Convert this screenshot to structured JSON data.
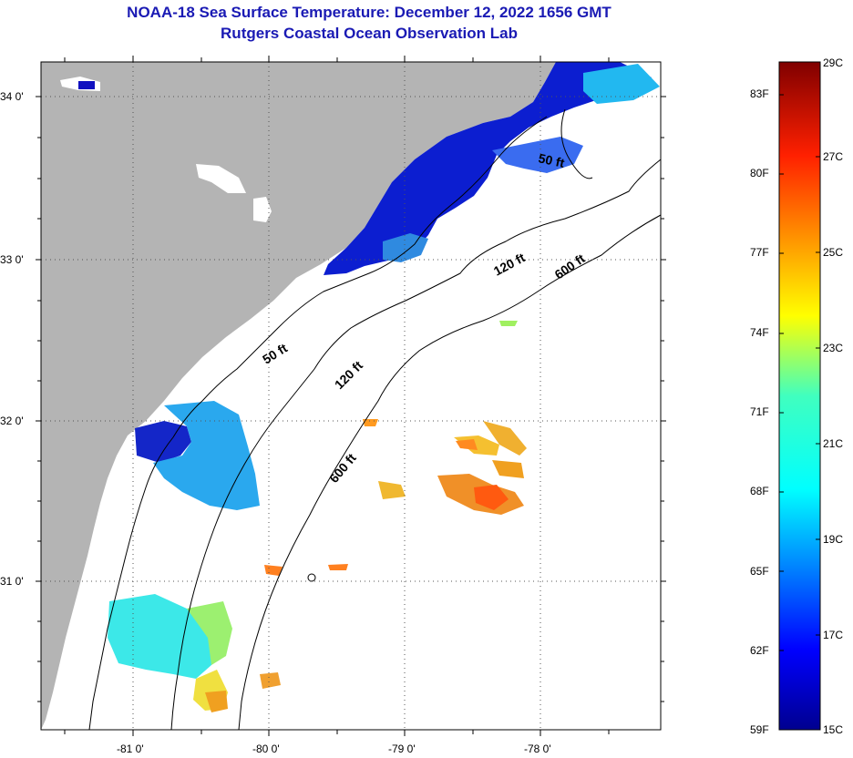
{
  "title": {
    "line1": "NOAA-18 Sea Surface Temperature:  December 12, 2022 1656 GMT",
    "line2": "Rutgers Coastal Ocean Observation Lab"
  },
  "map": {
    "lat_labels": [
      "34 0'",
      "33 0'",
      "32 0'",
      "31 0'"
    ],
    "lon_labels": [
      "-81 0'",
      "-80 0'",
      "-79 0'",
      "-78 0'"
    ],
    "contours": [
      {
        "name": "50 ft",
        "label": "50 ft"
      },
      {
        "name": "50 ft south",
        "label": "50 ft"
      },
      {
        "name": "120 ft",
        "label": "120 ft"
      },
      {
        "name": "120 ft south",
        "label": "120 ft"
      },
      {
        "name": "600 ft",
        "label": "600 ft"
      },
      {
        "name": "600 ft south",
        "label": "600 ft"
      }
    ]
  },
  "colorbar": {
    "fahrenheit_labels": [
      "83F",
      "80F",
      "77F",
      "74F",
      "71F",
      "68F",
      "65F",
      "62F",
      "59F"
    ],
    "celsius_labels": [
      "29C",
      "27C",
      "25C",
      "23C",
      "21C",
      "19C",
      "17C",
      "15C"
    ],
    "colors": {
      "land": "#b4b4b4",
      "cold": "#00008f",
      "mid": "#00c8ff",
      "warm": "#ffd000",
      "hot": "#800000"
    }
  }
}
